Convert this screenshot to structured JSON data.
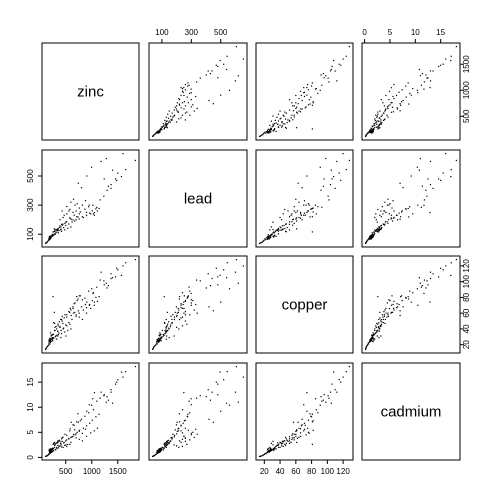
{
  "chart_data": {
    "type": "scatter",
    "variables": [
      {
        "name": "zinc",
        "range": [
          113,
          1839
        ],
        "ticks": [
          500,
          1000,
          1500
        ]
      },
      {
        "name": "lead",
        "range": [
          37,
          654
        ],
        "ticks": [
          100,
          300,
          500
        ]
      },
      {
        "name": "copper",
        "range": [
          14,
          128
        ],
        "ticks": [
          20,
          40,
          60,
          80,
          100,
          120
        ]
      },
      {
        "name": "cadmium",
        "range": [
          0.2,
          18.1
        ],
        "ticks": [
          0,
          5,
          10,
          15
        ]
      }
    ],
    "axis_ticks": {
      "top": [
        {
          "var": 1,
          "labels": [
            100,
            300,
            500
          ]
        },
        {
          "var": 3,
          "labels": [
            0,
            5,
            10,
            15
          ]
        }
      ],
      "bottom": [
        {
          "var": 0,
          "labels": [
            500,
            1000,
            1500
          ]
        },
        {
          "var": 2,
          "labels": [
            20,
            40,
            60,
            80,
            100,
            120
          ]
        }
      ],
      "left": [
        {
          "var": 1,
          "labels": [
            100,
            300,
            500
          ]
        },
        {
          "var": 3,
          "labels": [
            0,
            5,
            10,
            15
          ]
        }
      ],
      "right": [
        {
          "var": 0,
          "labels": [
            500,
            1000,
            1500
          ]
        },
        {
          "var": 2,
          "labels": [
            20,
            40,
            60,
            80,
            100,
            120
          ]
        }
      ]
    },
    "points": [
      [
        1022,
        299,
        85,
        11.7
      ],
      [
        1141,
        277,
        81,
        8.6
      ],
      [
        640,
        199,
        68,
        6.5
      ],
      [
        257,
        116,
        81,
        2.6
      ],
      [
        269,
        117,
        48,
        2.8
      ],
      [
        281,
        137,
        61,
        3.0
      ],
      [
        346,
        132,
        31,
        3.2
      ],
      [
        406,
        150,
        29,
        2.8
      ],
      [
        347,
        133,
        37,
        2.4
      ],
      [
        183,
        80,
        24,
        1.6
      ],
      [
        189,
        86,
        25,
        1.4
      ],
      [
        251,
        97,
        25,
        1.8
      ],
      [
        1096,
        285,
        93,
        11.2
      ],
      [
        504,
        183,
        31,
        2.5
      ],
      [
        326,
        130,
        27,
        2.0
      ],
      [
        1032,
        240,
        86,
        9.5
      ],
      [
        606,
        203,
        57,
        7.0
      ],
      [
        711,
        220,
        81,
        7.1
      ],
      [
        735,
        219,
        78,
        8.7
      ],
      [
        1052,
        249,
        74,
        12.9
      ],
      [
        673,
        191,
        61,
        5.5
      ],
      [
        402,
        130,
        52,
        2.8
      ],
      [
        343,
        126,
        37,
        2.9
      ],
      [
        218,
        86,
        27,
        1.7
      ],
      [
        200,
        78,
        28,
        1.5
      ],
      [
        194,
        80,
        28,
        1.3
      ],
      [
        207,
        81,
        25,
        1.2
      ],
      [
        180,
        67,
        26,
        1.3
      ],
      [
        240,
        90,
        28,
        1.5
      ],
      [
        180,
        71,
        25,
        1.3
      ],
      [
        208,
        86,
        35,
        1.7
      ],
      [
        198,
        65,
        24,
        1.0
      ],
      [
        250,
        90,
        33,
        1.7
      ],
      [
        192,
        72,
        24,
        1.1
      ],
      [
        213,
        73,
        27,
        1.3
      ],
      [
        247,
        93,
        28,
        1.8
      ],
      [
        236,
        87,
        32,
        1.7
      ],
      [
        191,
        72,
        26,
        1.4
      ],
      [
        225,
        81,
        32,
        1.6
      ],
      [
        263,
        93,
        33,
        1.8
      ],
      [
        285,
        103,
        38,
        2.0
      ],
      [
        228,
        87,
        32,
        1.4
      ],
      [
        193,
        76,
        26,
        1.0
      ],
      [
        242,
        99,
        29,
        1.6
      ],
      [
        184,
        76,
        25,
        1.3
      ],
      [
        219,
        86,
        31,
        1.5
      ],
      [
        287,
        120,
        47,
        2.4
      ],
      [
        292,
        128,
        42,
        2.7
      ],
      [
        353,
        139,
        46,
        3.3
      ],
      [
        446,
        169,
        47,
        4.0
      ],
      [
        519,
        186,
        55,
        4.4
      ],
      [
        577,
        212,
        61,
        5.3
      ],
      [
        421,
        168,
        52,
        3.7
      ],
      [
        377,
        146,
        49,
        3.4
      ],
      [
        389,
        158,
        43,
        3.2
      ],
      [
        314,
        133,
        43,
        2.8
      ],
      [
        296,
        121,
        38,
        2.5
      ],
      [
        355,
        135,
        44,
        3.1
      ],
      [
        326,
        128,
        40,
        2.9
      ],
      [
        433,
        162,
        56,
        3.9
      ],
      [
        484,
        175,
        58,
        4.6
      ],
      [
        586,
        210,
        66,
        5.7
      ],
      [
        662,
        231,
        72,
        6.4
      ],
      [
        780,
        253,
        82,
        7.3
      ],
      [
        868,
        272,
        79,
        8.2
      ],
      [
        940,
        289,
        88,
        8.9
      ],
      [
        1161,
        336,
        102,
        11.8
      ],
      [
        1233,
        361,
        101,
        12.3
      ],
      [
        1370,
        415,
        110,
        13.5
      ],
      [
        1480,
        470,
        117,
        15.0
      ],
      [
        1653,
        544,
        124,
        17.1
      ],
      [
        1839,
        607,
        128,
        18.1
      ],
      [
        1571,
        496,
        108,
        17.0
      ],
      [
        1372,
        441,
        104,
        13.0
      ],
      [
        1294,
        402,
        92,
        12.1
      ],
      [
        1458,
        480,
        106,
        14.6
      ],
      [
        1500,
        520,
        115,
        15.5
      ],
      [
        1320,
        430,
        95,
        11.4
      ],
      [
        1240,
        480,
        96,
        12.5
      ],
      [
        1400,
        540,
        105,
        10.8
      ],
      [
        803,
        420,
        68,
        7.6
      ],
      [
        742,
        450,
        63,
        7.0
      ],
      [
        953,
        300,
        70,
        10.5
      ],
      [
        905,
        500,
        74,
        9.2
      ],
      [
        998,
        560,
        91,
        10.4
      ],
      [
        1180,
        600,
        112,
        13.0
      ],
      [
        1280,
        620,
        98,
        11.0
      ],
      [
        1600,
        654,
        120,
        16.0
      ],
      [
        680,
        300,
        73,
        4.5
      ],
      [
        720,
        310,
        76,
        5.0
      ],
      [
        760,
        280,
        82,
        5.4
      ],
      [
        820,
        300,
        77,
        4.8
      ],
      [
        880,
        330,
        71,
        5.6
      ],
      [
        640,
        250,
        66,
        4.2
      ],
      [
        560,
        260,
        62,
        3.8
      ],
      [
        520,
        290,
        58,
        3.5
      ],
      [
        470,
        230,
        54,
        3.0
      ],
      [
        430,
        260,
        50,
        3.2
      ],
      [
        600,
        320,
        64,
        4.0
      ],
      [
        650,
        340,
        60,
        4.6
      ],
      [
        700,
        260,
        58,
        3.9
      ],
      [
        760,
        240,
        55,
        3.6
      ],
      [
        820,
        220,
        52,
        3.3
      ],
      [
        900,
        250,
        60,
        4.2
      ],
      [
        980,
        240,
        66,
        4.9
      ],
      [
        1050,
        230,
        70,
        5.3
      ],
      [
        1110,
        260,
        75,
        5.8
      ],
      [
        600,
        150,
        40,
        3.0
      ],
      [
        540,
        140,
        38,
        2.6
      ],
      [
        480,
        130,
        36,
        2.4
      ],
      [
        420,
        120,
        34,
        2.1
      ],
      [
        360,
        110,
        33,
        1.9
      ],
      [
        300,
        100,
        30,
        1.6
      ],
      [
        260,
        95,
        29,
        1.4
      ],
      [
        230,
        89,
        27,
        1.2
      ],
      [
        210,
        84,
        26,
        1.1
      ],
      [
        195,
        70,
        21,
        0.8
      ],
      [
        180,
        60,
        20,
        0.6
      ],
      [
        165,
        55,
        19,
        0.5
      ],
      [
        150,
        50,
        18,
        0.4
      ],
      [
        140,
        45,
        17,
        0.3
      ],
      [
        130,
        42,
        16,
        0.3
      ],
      [
        120,
        40,
        15,
        0.2
      ],
      [
        113,
        37,
        14,
        0.2
      ],
      [
        175,
        63,
        22,
        0.7
      ],
      [
        205,
        75,
        23,
        0.9
      ],
      [
        222,
        82,
        24,
        1.0
      ],
      [
        245,
        88,
        26,
        1.1
      ],
      [
        270,
        94,
        28,
        1.3
      ],
      [
        310,
        110,
        31,
        1.5
      ],
      [
        330,
        115,
        32,
        1.8
      ],
      [
        370,
        125,
        35,
        2.2
      ],
      [
        410,
        135,
        38,
        2.5
      ],
      [
        460,
        145,
        41,
        2.9
      ],
      [
        500,
        160,
        45,
        3.3
      ],
      [
        560,
        170,
        48,
        3.7
      ],
      [
        620,
        185,
        52,
        4.1
      ],
      [
        700,
        200,
        56,
        4.7
      ],
      [
        760,
        205,
        60,
        5.2
      ],
      [
        840,
        215,
        64,
        5.8
      ],
      [
        900,
        230,
        67,
        6.3
      ],
      [
        960,
        245,
        71,
        6.8
      ],
      [
        1010,
        260,
        76,
        7.4
      ],
      [
        1080,
        275,
        80,
        8.1
      ],
      [
        390,
        200,
        42,
        2.3
      ],
      [
        450,
        215,
        40,
        2.0
      ],
      [
        520,
        240,
        44,
        2.2
      ],
      [
        580,
        270,
        46,
        2.6
      ]
    ]
  }
}
